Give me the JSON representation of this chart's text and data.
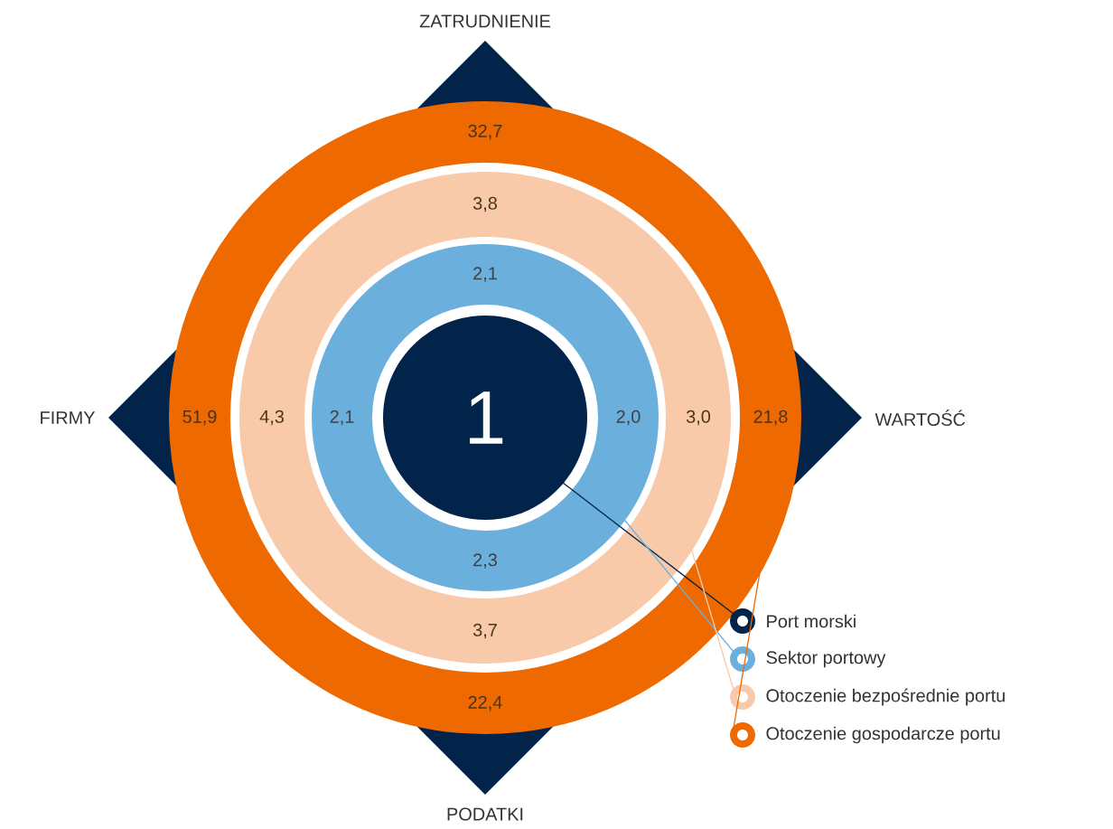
{
  "chart_data": {
    "type": "other",
    "categories": [
      "ZATRUDNIENIE",
      "WARTOŚĆ",
      "PODATKI",
      "FIRMY"
    ],
    "legend": "bottom right",
    "series": [
      {
        "name": "Port morski",
        "color": "#03244a",
        "values": [
          1,
          null,
          null,
          null
        ],
        "value_labels": [
          "1",
          null,
          null,
          null
        ]
      },
      {
        "name": "Sektor portowy",
        "color": "#6bb0dd",
        "values": [
          2.1,
          2.0,
          2.3,
          2.1
        ],
        "value_labels": [
          "2,1",
          "2,0",
          "2,3",
          "2,1"
        ]
      },
      {
        "name": "Otoczenie bezpośrednie portu",
        "color": "#f8caaa",
        "values": [
          3.8,
          3.0,
          3.7,
          4.3
        ],
        "value_labels": [
          "3,8",
          "3,0",
          "3,7",
          "4,3"
        ]
      },
      {
        "name": "Otoczenie gospodarcze portu",
        "color": "#ee6a00",
        "values": [
          32.7,
          21.8,
          22.4,
          51.9
        ],
        "value_labels": [
          "32,7",
          "21,8",
          "22,4",
          "51,9"
        ]
      }
    ]
  }
}
